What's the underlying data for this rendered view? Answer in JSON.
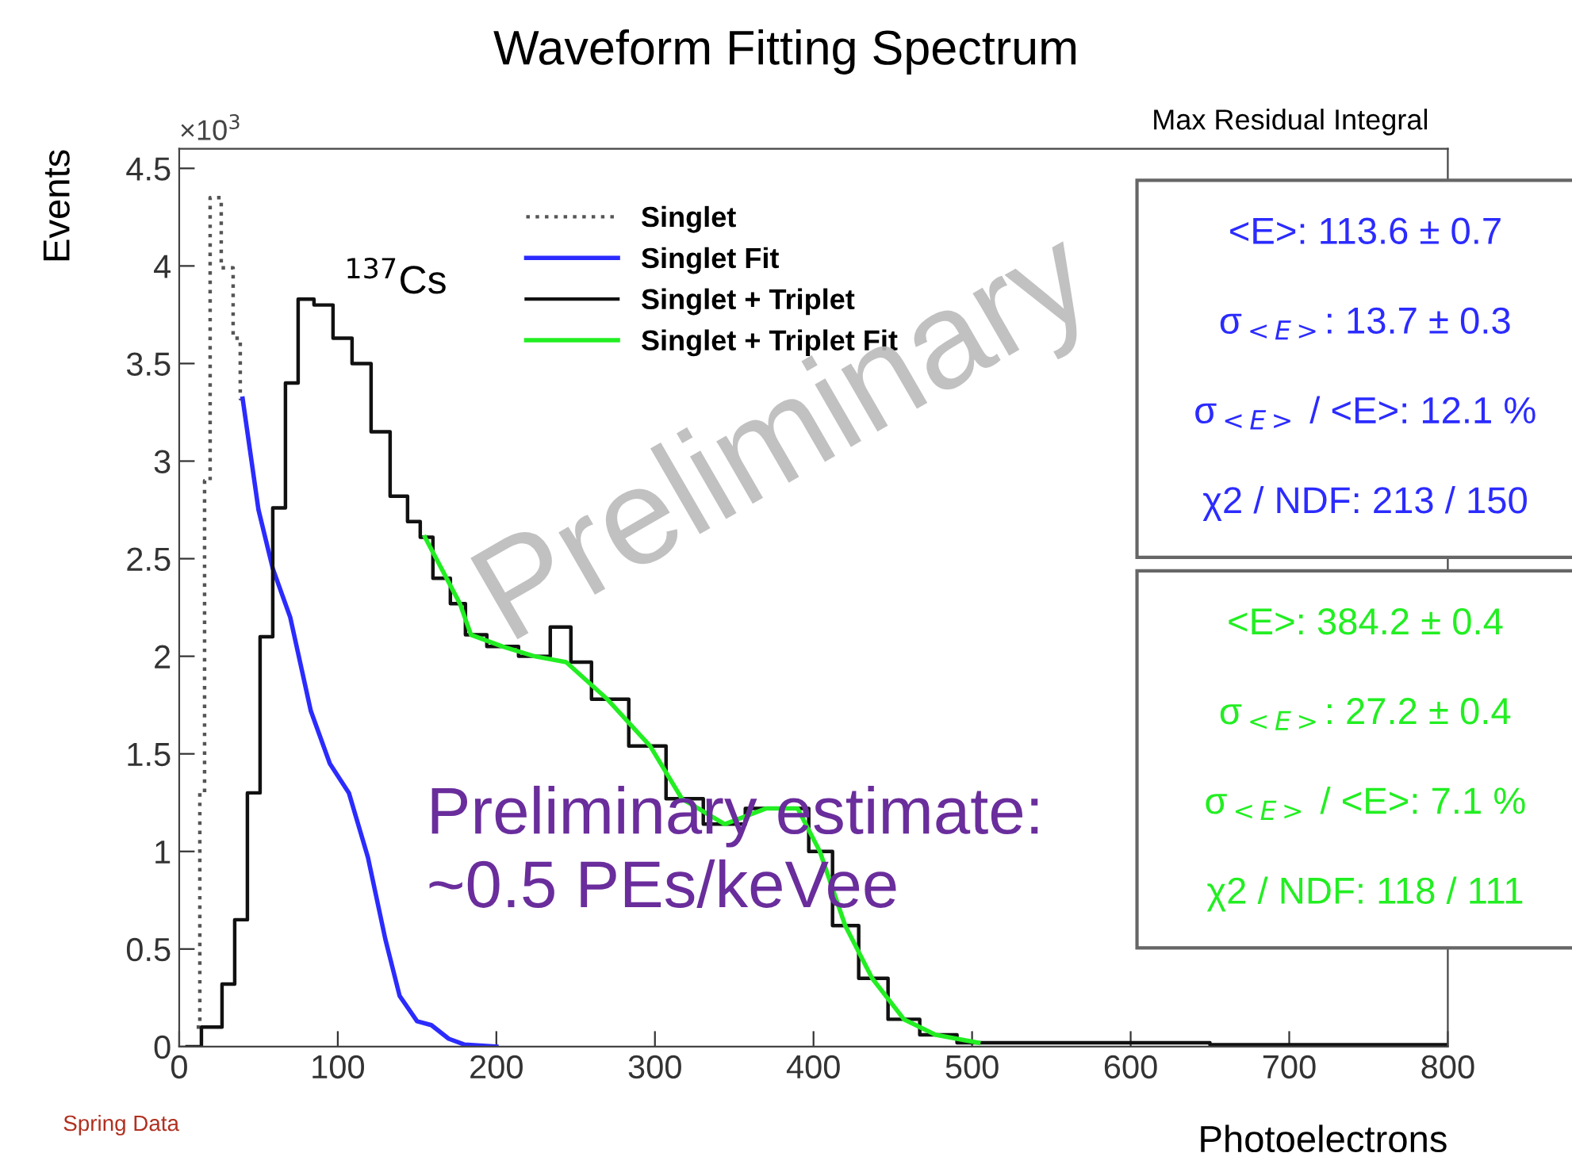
{
  "chart_data": {
    "type": "step",
    "title": "Waveform Fitting Spectrum",
    "subtitle": "Max Residual Integral",
    "xlabel": "Photoelectrons",
    "ylabel": "Events",
    "xlim": [
      0,
      800
    ],
    "xticks": [
      0,
      100,
      200,
      300,
      400,
      500,
      600,
      700,
      800
    ],
    "ylim": [
      0,
      4.6
    ],
    "yticks": [
      0,
      0.5,
      1,
      1.5,
      2,
      2.5,
      3,
      3.5,
      4,
      4.5
    ],
    "grid": false,
    "legend": "top",
    "marker": "none",
    "series": [
      {
        "name": "Singlet",
        "line_style": "dotted",
        "color": "#555555",
        "x": [
          11,
          15,
          17,
          22,
          31,
          37,
          40
        ],
        "values": [
          0.1,
          1.3,
          2.9,
          4.35,
          3.99,
          3.63,
          3.32
        ]
      },
      {
        "name": "Singlet Fit",
        "type": "line",
        "line_style": "solid",
        "color": "#2b2bff",
        "x": [
          40,
          50,
          59,
          70,
          83,
          95,
          107,
          119,
          130,
          139,
          150,
          159,
          170,
          180,
          200
        ],
        "values": [
          3.32,
          2.75,
          2.45,
          2.2,
          1.72,
          1.45,
          1.3,
          0.97,
          0.55,
          0.26,
          0.13,
          0.11,
          0.04,
          0.01,
          0.0
        ]
      },
      {
        "name": "Singlet + Triplet",
        "line_style": "solid",
        "color": "#111111",
        "x": [
          5,
          23,
          31,
          39,
          47,
          55,
          63,
          71,
          79,
          91,
          103,
          115,
          127,
          139,
          149,
          155,
          165,
          177,
          184,
          204,
          224,
          244,
          250,
          270,
          297,
          317,
          344,
          370,
          390,
          404,
          420,
          437,
          457,
          477,
          504,
          550,
          600,
          700,
          800
        ],
        "values": [
          0.0,
          0.1,
          0.32,
          0.65,
          1.3,
          2.1,
          2.76,
          3.4,
          3.83,
          3.8,
          3.63,
          3.5,
          3.15,
          2.82,
          2.69,
          2.61,
          2.4,
          2.27,
          2.11,
          2.05,
          2.0,
          2.15,
          1.97,
          1.78,
          1.54,
          1.27,
          1.14,
          1.22,
          1.22,
          1.0,
          0.62,
          0.35,
          0.14,
          0.06,
          0.02,
          0.02,
          0.02,
          0.01,
          0.01
        ]
      },
      {
        "name": "Singlet + Triplet Fit",
        "type": "line",
        "line_style": "solid",
        "color": "#22ee22",
        "x": [
          155,
          177,
          184,
          204,
          224,
          244,
          270,
          297,
          317,
          344,
          370,
          390,
          404,
          420,
          437,
          457,
          477,
          504
        ],
        "values": [
          2.61,
          2.27,
          2.11,
          2.05,
          2.0,
          1.97,
          1.78,
          1.54,
          1.27,
          1.14,
          1.22,
          1.22,
          1.0,
          0.62,
          0.35,
          0.14,
          0.06,
          0.02
        ]
      }
    ],
    "annotations": [
      "×10$^{3}$",
      "$^{137}$Cs",
      "Preliminary",
      "Preliminary estimate:\n~0.5 PEs/keVee",
      "<E>: 113.6 ± 0.7",
      "σ$_{<E>}$: 13.7 ± 0.3",
      "σ$_{<E>}$ / <E>: 12.1 %",
      "χ2 / NDF: 213 / 150",
      "<E>: 384.2 ± 0.4",
      "σ$_{<E>}$: 27.2 ± 0.4",
      "σ$_{<E>}$ / <E>: 7.1 %",
      "χ2 / NDF: 118 / 111",
      "Spring Data"
    ]
  }
}
